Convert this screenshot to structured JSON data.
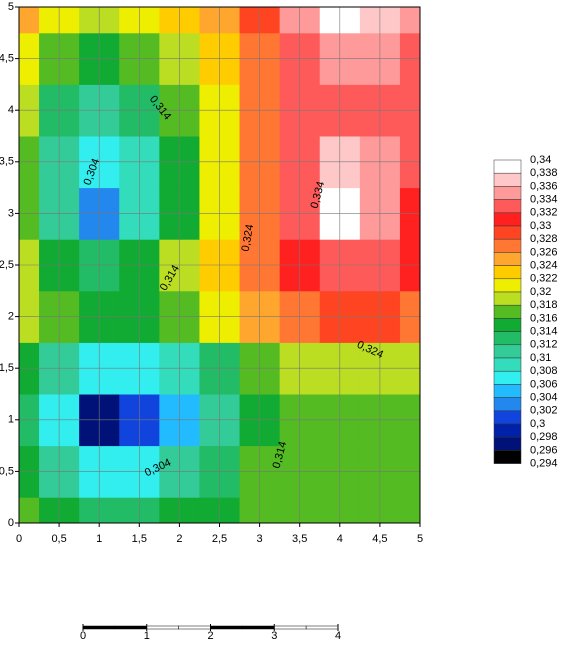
{
  "chart_data": {
    "type": "contour",
    "x": [
      0,
      0.5,
      1,
      1.5,
      2,
      2.5,
      3,
      3.5,
      4,
      4.5,
      5
    ],
    "y": [
      0,
      0.5,
      1,
      1.5,
      2,
      2.5,
      3,
      3.5,
      4,
      4.5,
      5
    ],
    "z": [
      [
        0.316,
        0.314,
        0.312,
        0.312,
        0.314,
        0.315,
        0.316,
        0.316,
        0.316,
        0.316,
        0.316
      ],
      [
        0.314,
        0.31,
        0.306,
        0.306,
        0.31,
        0.313,
        0.316,
        0.316,
        0.316,
        0.316,
        0.316
      ],
      [
        0.312,
        0.306,
        0.296,
        0.3,
        0.304,
        0.31,
        0.314,
        0.316,
        0.316,
        0.316,
        0.316
      ],
      [
        0.314,
        0.31,
        0.306,
        0.306,
        0.308,
        0.312,
        0.316,
        0.318,
        0.318,
        0.318,
        0.318
      ],
      [
        0.318,
        0.316,
        0.314,
        0.314,
        0.316,
        0.32,
        0.324,
        0.326,
        0.328,
        0.328,
        0.326
      ],
      [
        0.318,
        0.314,
        0.312,
        0.314,
        0.318,
        0.322,
        0.326,
        0.33,
        0.332,
        0.332,
        0.33
      ],
      [
        0.316,
        0.31,
        0.302,
        0.308,
        0.314,
        0.32,
        0.326,
        0.332,
        0.34,
        0.334,
        0.33
      ],
      [
        0.316,
        0.31,
        0.306,
        0.308,
        0.314,
        0.32,
        0.326,
        0.332,
        0.336,
        0.334,
        0.332
      ],
      [
        0.318,
        0.312,
        0.31,
        0.312,
        0.316,
        0.32,
        0.326,
        0.332,
        0.332,
        0.332,
        0.332
      ],
      [
        0.32,
        0.316,
        0.314,
        0.316,
        0.318,
        0.322,
        0.326,
        0.332,
        0.334,
        0.334,
        0.332
      ],
      [
        0.324,
        0.32,
        0.318,
        0.32,
        0.322,
        0.324,
        0.328,
        0.334,
        0.34,
        0.336,
        0.334
      ]
    ],
    "xlim": [
      0,
      5
    ],
    "ylim": [
      0,
      5
    ],
    "xticks": [
      0,
      {
        "value": 0.5,
        "label": "0,5"
      },
      1,
      {
        "value": 1.5,
        "label": "1,5"
      },
      2,
      {
        "value": 2.5,
        "label": "2,5"
      },
      3,
      {
        "value": 3.5,
        "label": "3,5"
      },
      4,
      {
        "value": 4.5,
        "label": "4,5"
      },
      5
    ],
    "yticks": [
      0,
      {
        "value": 0.5,
        "label": "0,5"
      },
      1,
      {
        "value": 1.5,
        "label": "1,5"
      },
      2,
      {
        "value": 2.5,
        "label": "2,5"
      },
      3,
      {
        "value": 3.5,
        "label": "3,5"
      },
      4,
      {
        "value": 4.5,
        "label": "4,5"
      },
      5
    ],
    "grid": true,
    "levels": [
      {
        "value": 0.34,
        "label": "0,34"
      },
      {
        "value": 0.338,
        "label": "0,338"
      },
      {
        "value": 0.336,
        "label": "0,336"
      },
      {
        "value": 0.334,
        "label": "0,334"
      },
      {
        "value": 0.332,
        "label": "0,332"
      },
      {
        "value": 0.33,
        "label": "0,33"
      },
      {
        "value": 0.328,
        "label": "0,328"
      },
      {
        "value": 0.326,
        "label": "0,326"
      },
      {
        "value": 0.324,
        "label": "0,324"
      },
      {
        "value": 0.322,
        "label": "0,322"
      },
      {
        "value": 0.32,
        "label": "0,32"
      },
      {
        "value": 0.318,
        "label": "0,318"
      },
      {
        "value": 0.316,
        "label": "0,316"
      },
      {
        "value": 0.314,
        "label": "0,314"
      },
      {
        "value": 0.312,
        "label": "0,312"
      },
      {
        "value": 0.31,
        "label": "0,31"
      },
      {
        "value": 0.308,
        "label": "0,308"
      },
      {
        "value": 0.306,
        "label": "0,306"
      },
      {
        "value": 0.304,
        "label": "0,304"
      },
      {
        "value": 0.302,
        "label": "0,302"
      },
      {
        "value": 0.3,
        "label": "0,3"
      },
      {
        "value": 0.298,
        "label": "0,298"
      },
      {
        "value": 0.296,
        "label": "0,296"
      },
      {
        "value": 0.294,
        "label": "0,294"
      }
    ],
    "colors": [
      "#ffffff",
      "#ffc8c8",
      "#ff9a9a",
      "#ff5a5a",
      "#ff2020",
      "#ff4422",
      "#ff7733",
      "#ffa62e",
      "#ffcc00",
      "#eeee00",
      "#bbdd22",
      "#55bb22",
      "#11aa33",
      "#22bb66",
      "#33cc99",
      "#33ddbb",
      "#33eeee",
      "#22bbff",
      "#2288ee",
      "#1144dd",
      "#0022aa",
      "#001177",
      "#000000"
    ],
    "contour_labels": [
      "0,314",
      "0,304",
      "0,314",
      "0,324",
      "0,334",
      "0,324",
      "0,304",
      "0,314"
    ],
    "scale_bar": {
      "ticks": [
        0,
        1,
        2,
        3,
        4
      ]
    }
  }
}
